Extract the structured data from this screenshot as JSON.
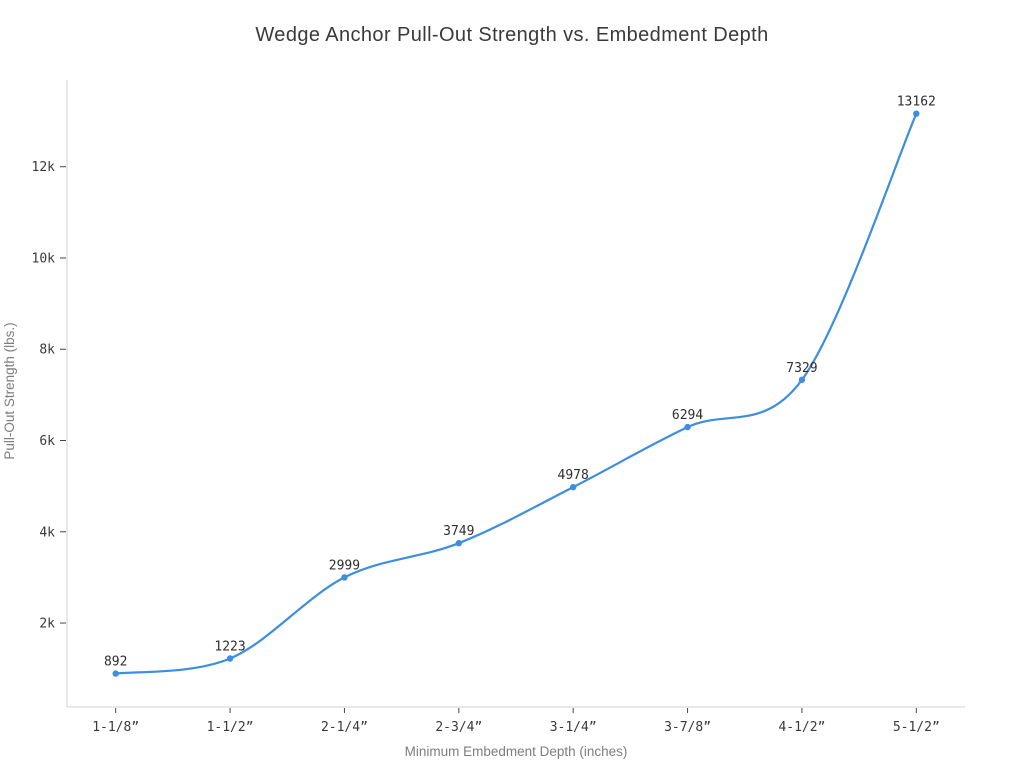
{
  "page": {
    "background": "#ffffff"
  },
  "chart_data": {
    "type": "line",
    "line_shape": "spline",
    "title": "Wedge Anchor Pull-Out Strength vs. Embedment Depth",
    "xlabel": "Minimum Embedment Depth (inches)",
    "ylabel": "Pull-Out Strength (lbs.)",
    "categories": [
      "1-1/8”",
      "1-1/2”",
      "2-1/4”",
      "2-3/4”",
      "3-1/4”",
      "3-7/8”",
      "4-1/2”",
      "5-1/2”"
    ],
    "series": [
      {
        "name": "Pull-Out Strength",
        "values": [
          892,
          1223,
          2999,
          3749,
          4978,
          6294,
          7329,
          13162
        ]
      }
    ],
    "point_labels": [
      "892",
      "1223",
      "2999",
      "3749",
      "4978",
      "6294",
      "7329",
      "13162"
    ],
    "y_ticks": [
      {
        "value": 2000,
        "label": "2k"
      },
      {
        "value": 4000,
        "label": "4k"
      },
      {
        "value": 6000,
        "label": "6k"
      },
      {
        "value": 8000,
        "label": "8k"
      },
      {
        "value": 10000,
        "label": "10k"
      },
      {
        "value": 12000,
        "label": "12k"
      }
    ],
    "ylim": [
      160,
      13900
    ],
    "grid": false,
    "legend": "none",
    "markers": true,
    "colors": {
      "line": "#3d8de0",
      "marker": "#3d8de0",
      "axis_line": "#d9d9d9",
      "tick_mark": "#444444",
      "tick_label_text": "#3a3a3a",
      "point_label_text": "#2f2f2f",
      "axis_title_text": "#7e7e7e",
      "title_text": "#3a3a3a",
      "background": "#ffffff"
    }
  }
}
